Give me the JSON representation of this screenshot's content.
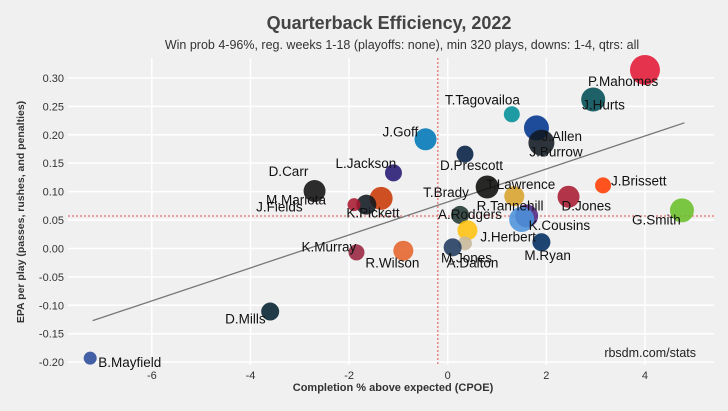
{
  "chart_data": {
    "type": "scatter",
    "title": "Quarterback Efficiency, 2022",
    "subtitle": "Win prob 4-96%, reg. weeks 1-18 (playoffs: none), min 320 plays, downs: 1-4, qtrs: all",
    "xlabel": "Completion % above expected (CPOE)",
    "ylabel": "EPA per play (passes, rushes, and penalties)",
    "xlim": [
      -7.7,
      5.4
    ],
    "ylim": [
      -0.205,
      0.335
    ],
    "xticks": [
      -6,
      -4,
      -2,
      0,
      2,
      4
    ],
    "yticks": [
      -0.2,
      -0.15,
      -0.1,
      -0.05,
      0.0,
      0.05,
      0.1,
      0.15,
      0.2,
      0.25,
      0.3
    ],
    "grid": true,
    "watermark": "rbsdm.com/stats",
    "mean_lines": {
      "x": -0.2,
      "y": 0.057
    },
    "trend_line": {
      "x": [
        -7.2,
        4.8
      ],
      "y": [
        -0.127,
        0.221
      ]
    },
    "points": [
      {
        "label": "P.Mahomes",
        "x": 4.0,
        "y": 0.314,
        "size": 30,
        "color": "#e31837"
      },
      {
        "label": "J.Hurts",
        "x": 2.95,
        "y": 0.262,
        "size": 24,
        "color": "#004c54"
      },
      {
        "label": "T.Tagovailoa",
        "x": 1.3,
        "y": 0.236,
        "size": 16,
        "color": "#008e97"
      },
      {
        "label": "J.Allen",
        "x": 1.8,
        "y": 0.212,
        "size": 25,
        "color": "#00338d"
      },
      {
        "label": "J.Goff",
        "x": -0.45,
        "y": 0.192,
        "size": 22,
        "color": "#0076b6"
      },
      {
        "label": "J.Burrow",
        "x": 1.9,
        "y": 0.186,
        "size": 26,
        "color": "#101820"
      },
      {
        "label": "D.Prescott",
        "x": 0.35,
        "y": 0.166,
        "size": 17,
        "color": "#041e42"
      },
      {
        "label": "L.Jackson",
        "x": -1.1,
        "y": 0.133,
        "size": 17,
        "color": "#241773"
      },
      {
        "label": "J.Brissett",
        "x": 3.15,
        "y": 0.111,
        "size": 16,
        "color": "#ff3c00"
      },
      {
        "label": "T.Brady",
        "x": 0.8,
        "y": 0.108,
        "size": 23,
        "color": "#0a0a08"
      },
      {
        "label": "D.Carr",
        "x": -2.7,
        "y": 0.101,
        "size": 22,
        "color": "#101010"
      },
      {
        "label": "D.Jones",
        "x": 2.45,
        "y": 0.091,
        "size": 22,
        "color": "#a71930"
      },
      {
        "label": "T.Lawrence",
        "x": 1.35,
        "y": 0.092,
        "size": 20,
        "color": "#d7a22a"
      },
      {
        "label": "J.Fields",
        "x": -1.35,
        "y": 0.088,
        "size": 23,
        "color": "#c83803"
      },
      {
        "label": "K.Pickett",
        "x": -1.65,
        "y": 0.077,
        "size": 20,
        "color": "#101820"
      },
      {
        "label": "M.Mariota",
        "x": -1.9,
        "y": 0.077,
        "size": 13,
        "color": "#a71930"
      },
      {
        "label": "G.Smith",
        "x": 4.75,
        "y": 0.067,
        "size": 24,
        "color": "#69be28"
      },
      {
        "label": "K.Cousins",
        "x": 1.6,
        "y": 0.057,
        "size": 23,
        "color": "#4f2683"
      },
      {
        "label": "A.Rodgers",
        "x": 0.25,
        "y": 0.059,
        "size": 18,
        "color": "#203731"
      },
      {
        "label": "R.Tannehill",
        "x": 1.5,
        "y": 0.051,
        "size": 25,
        "color": "#4b92db"
      },
      {
        "label": "J.Herbert",
        "x": 0.4,
        "y": 0.032,
        "size": 20,
        "color": "#ffc20e"
      },
      {
        "label": "M.Ryan",
        "x": 1.9,
        "y": 0.011,
        "size": 18,
        "color": "#002c5f"
      },
      {
        "label": "M.Jones",
        "x": 0.35,
        "y": 0.009,
        "size": 14,
        "color": "#c8b89a"
      },
      {
        "label": "A.Dalton",
        "x": 0.1,
        "y": 0.002,
        "size": 18,
        "color": "#203a5e"
      },
      {
        "label": "R.Wilson",
        "x": -0.9,
        "y": -0.004,
        "size": 20,
        "color": "#e5632a"
      },
      {
        "label": "K.Murray",
        "x": -1.85,
        "y": -0.007,
        "size": 16,
        "color": "#97233f"
      },
      {
        "label": "D.Mills",
        "x": -3.6,
        "y": -0.111,
        "size": 18,
        "color": "#03202f"
      },
      {
        "label": "B.Mayfield",
        "x": -7.25,
        "y": -0.193,
        "size": 13,
        "color": "#2a4a9a"
      }
    ]
  }
}
